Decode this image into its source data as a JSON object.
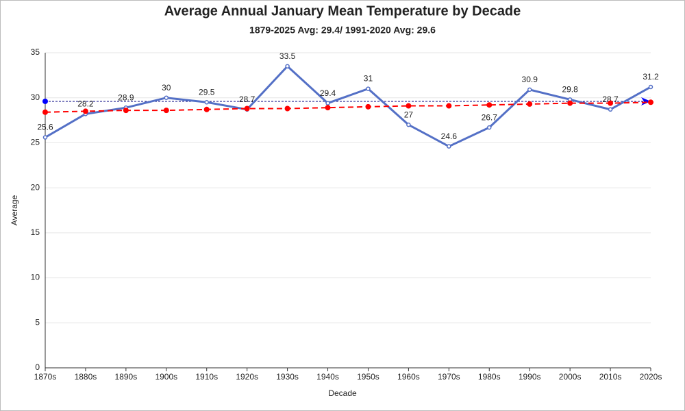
{
  "chart_data": {
    "type": "line",
    "title": "Average Annual January Mean Temperature by Decade",
    "subtitle": "1879-2025 Avg: 29.4/ 1991-2020 Avg: 29.6",
    "x_label": "Decade",
    "y_label": "Average",
    "categories": [
      "1870s",
      "1880s",
      "1890s",
      "1900s",
      "1910s",
      "1920s",
      "1930s",
      "1940s",
      "1950s",
      "1960s",
      "1970s",
      "1980s",
      "1990s",
      "2000s",
      "2010s",
      "2020s"
    ],
    "series": [
      {
        "color": "#5470c6",
        "values": [
          25.6,
          28.2,
          28.9,
          30,
          29.5,
          28.7,
          33.5,
          29.4,
          31,
          27,
          24.6,
          26.7,
          30.9,
          29.8,
          28.7,
          31.2
        ],
        "labels": true
      },
      {
        "color": "#ff0000",
        "dashed": true,
        "values": [
          28.4,
          28.5,
          28.6,
          28.6,
          28.7,
          28.8,
          28.8,
          28.9,
          29.0,
          29.1,
          29.1,
          29.2,
          29.3,
          29.4,
          29.4,
          29.5
        ]
      }
    ],
    "reference_line": {
      "value": 29.6,
      "color": "#000080",
      "marker_color": "#0000ff"
    },
    "ylim": [
      0,
      35
    ],
    "yticks": [
      0,
      5,
      10,
      15,
      20,
      25,
      30,
      35
    ],
    "grid": true
  }
}
